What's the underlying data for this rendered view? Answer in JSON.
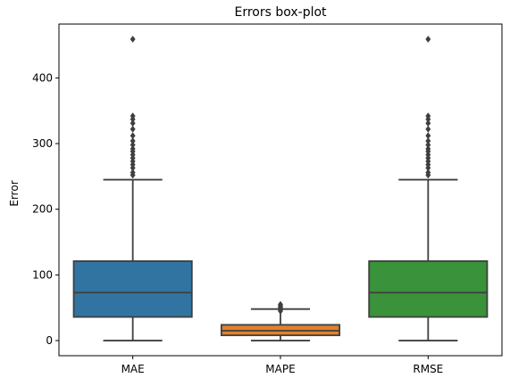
{
  "chart_data": {
    "type": "box",
    "title": "Errors box-plot",
    "xlabel": "",
    "ylabel": "Error",
    "ylim": [
      -23,
      482
    ],
    "yticks": [
      0,
      100,
      200,
      300,
      400
    ],
    "grid": false,
    "categories": [
      "MAE",
      "MAPE",
      "RMSE"
    ],
    "boxes": [
      {
        "name": "MAE",
        "color": "#3274a1",
        "whisker_low": 0,
        "q1": 36,
        "median": 73,
        "q3": 121,
        "whisker_high": 245,
        "outliers": [
          252,
          256,
          263,
          268,
          273,
          278,
          283,
          288,
          292,
          298,
          304,
          312,
          322,
          331,
          337,
          342,
          459
        ]
      },
      {
        "name": "MAPE",
        "color": "#e1812c",
        "whisker_low": 0,
        "q1": 8,
        "median": 15,
        "q3": 24,
        "whisker_high": 48,
        "outliers": [
          45,
          47,
          49,
          51,
          53,
          55
        ]
      },
      {
        "name": "RMSE",
        "color": "#3a923a",
        "whisker_low": 0,
        "q1": 36,
        "median": 73,
        "q3": 121,
        "whisker_high": 245,
        "outliers": [
          252,
          256,
          263,
          268,
          273,
          278,
          283,
          288,
          292,
          298,
          304,
          312,
          322,
          331,
          337,
          342,
          459
        ]
      }
    ]
  }
}
